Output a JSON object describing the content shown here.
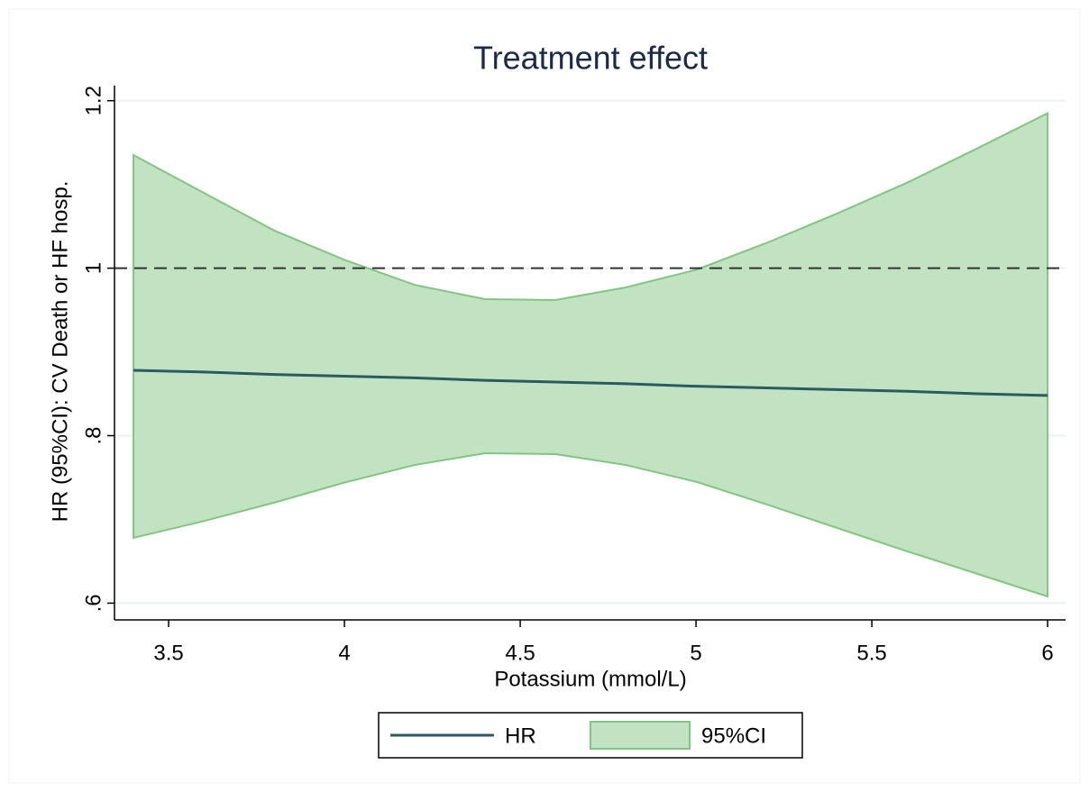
{
  "chart_data": {
    "type": "line_band",
    "title": "Treatment effect",
    "x_label": "Potassium (mmol/L)",
    "y_label": "HR (95%CI): CV Death or HF hosp.",
    "x": [
      3.4,
      3.6,
      3.8,
      4.0,
      4.2,
      4.4,
      4.6,
      4.8,
      5.0,
      5.2,
      5.4,
      5.6,
      5.8,
      6.0
    ],
    "series": [
      {
        "name": "HR",
        "color": "#2b5a63",
        "values": [
          0.878,
          0.876,
          0.873,
          0.871,
          0.869,
          0.866,
          0.864,
          0.862,
          0.859,
          0.857,
          0.855,
          0.853,
          0.85,
          0.848
        ]
      }
    ],
    "ci": {
      "name": "95%CI",
      "color": "#c2e3c2",
      "edge_color": "#82c482",
      "upper": [
        1.135,
        1.09,
        1.045,
        1.01,
        0.98,
        0.963,
        0.962,
        0.977,
        0.998,
        1.03,
        1.065,
        1.102,
        1.143,
        1.185
      ],
      "lower": [
        0.678,
        0.698,
        0.72,
        0.744,
        0.765,
        0.779,
        0.778,
        0.765,
        0.745,
        0.718,
        0.69,
        0.662,
        0.635,
        0.608
      ]
    },
    "reference_line": 1,
    "xlim": [
      3.346,
      6.051
    ],
    "xticks": [
      3.5,
      4,
      4.5,
      5,
      5.5,
      6
    ],
    "ylim": [
      0.58,
      1.218
    ],
    "yticks": [
      {
        "value": 0.6,
        "label": ".6"
      },
      {
        "value": 0.8,
        "label": ".8"
      },
      1,
      1.2
    ],
    "grid": true,
    "legend": "bottom"
  }
}
